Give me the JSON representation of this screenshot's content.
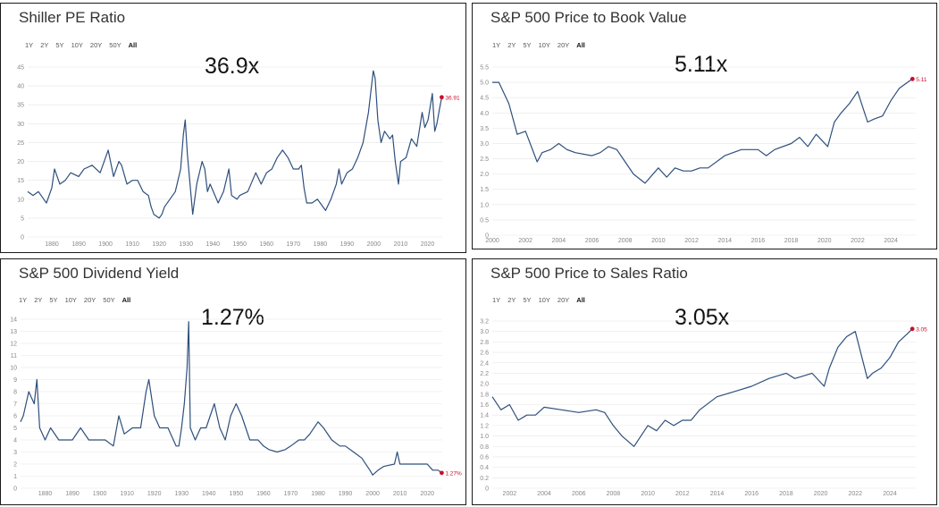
{
  "colors": {
    "line": "#2e4f7c",
    "marker": "#c8102e",
    "grid": "#e6e6e6",
    "tick": "#888888",
    "label": "#c8102e"
  },
  "panels": [
    {
      "title": "Shiller PE Ratio",
      "ranges": [
        "1Y",
        "2Y",
        "5Y",
        "10Y",
        "20Y",
        "50Y",
        "All"
      ],
      "active_range": "All",
      "headline": "36.9x"
    },
    {
      "title": "S&P 500 Price to Book Value",
      "ranges": [
        "1Y",
        "2Y",
        "5Y",
        "10Y",
        "20Y",
        "All"
      ],
      "active_range": "All",
      "headline": "5.11x"
    },
    {
      "title": "S&P 500 Dividend Yield",
      "ranges": [
        "1Y",
        "2Y",
        "5Y",
        "10Y",
        "20Y",
        "50Y",
        "All"
      ],
      "active_range": "All",
      "headline": "1.27%"
    },
    {
      "title": "S&P 500 Price to Sales Ratio",
      "ranges": [
        "1Y",
        "2Y",
        "5Y",
        "10Y",
        "20Y",
        "All"
      ],
      "active_range": "All",
      "headline": "3.05x"
    }
  ],
  "chart_data": [
    {
      "type": "line",
      "title": "Shiller PE Ratio",
      "xlabel": "",
      "ylabel": "",
      "xlim": [
        1871,
        2025.5
      ],
      "ylim": [
        0,
        45
      ],
      "y_ticks": [
        "0",
        "5",
        "10",
        "15",
        "20",
        "25",
        "30",
        "35",
        "40",
        "45"
      ],
      "x_ticks": [
        "1880",
        "1890",
        "1900",
        "1910",
        "1920",
        "1930",
        "1940",
        "1950",
        "1960",
        "1970",
        "1980",
        "1990",
        "2000",
        "2010",
        "2020"
      ],
      "grid": true,
      "last_value_label": "36.91",
      "series": [
        {
          "x": [
            1871,
            1873,
            1875,
            1877,
            1878,
            1880,
            1881,
            1883,
            1885,
            1887,
            1890,
            1892,
            1895,
            1898,
            1900,
            1901,
            1903,
            1905,
            1906,
            1908,
            1910,
            1912,
            1914,
            1916,
            1917,
            1918,
            1920,
            1921,
            1922,
            1924,
            1926,
            1928,
            1929,
            1929.7,
            1930.5,
            1931.5,
            1932.5,
            1934,
            1936,
            1937,
            1938,
            1939,
            1942,
            1944,
            1946,
            1947,
            1949,
            1950,
            1953,
            1956,
            1958,
            1960,
            1962,
            1964,
            1966,
            1968,
            1970,
            1972,
            1973,
            1974,
            1975,
            1977,
            1979,
            1980,
            1982,
            1984,
            1986,
            1987,
            1988,
            1990,
            1992,
            1994,
            1996,
            1998,
            1999.8,
            2000.5,
            2001.5,
            2002.7,
            2004,
            2006,
            2007,
            2008,
            2009.2,
            2010,
            2012,
            2014,
            2016,
            2018,
            2019,
            2020.2,
            2021.8,
            2022.7,
            2023.5,
            2024.5,
            2025.3
          ],
          "y": [
            12,
            11,
            12,
            10,
            9,
            13,
            18,
            14,
            15,
            17,
            16,
            18,
            19,
            17,
            21,
            23,
            16,
            20,
            19,
            14,
            15,
            15,
            12,
            11,
            8,
            6,
            5,
            6,
            8,
            10,
            12,
            18,
            27,
            31,
            22,
            14,
            6,
            14,
            20,
            18,
            12,
            14,
            9,
            12,
            18,
            11,
            10,
            11,
            12,
            17,
            14,
            17,
            18,
            21,
            23,
            21,
            18,
            18,
            19,
            13,
            9,
            9,
            10,
            9,
            7,
            10,
            14,
            18,
            14,
            17,
            18,
            21,
            25,
            33,
            44,
            42,
            31,
            25,
            28,
            26,
            27,
            20,
            14,
            20,
            21,
            26,
            24,
            33,
            29,
            31,
            38,
            28,
            30,
            34,
            37
          ]
        }
      ]
    },
    {
      "type": "line",
      "title": "S&P 500 Price to Book Value",
      "xlabel": "",
      "ylabel": "",
      "xlim": [
        2000,
        2025.5
      ],
      "ylim": [
        0,
        5.5
      ],
      "y_ticks": [
        "0",
        "0.5",
        "1.0",
        "1.5",
        "2.0",
        "2.5",
        "3.0",
        "3.5",
        "4.0",
        "4.5",
        "5.0",
        "5.5"
      ],
      "x_ticks": [
        "2000",
        "2002",
        "2004",
        "2006",
        "2008",
        "2010",
        "2012",
        "2014",
        "2016",
        "2018",
        "2020",
        "2022",
        "2024"
      ],
      "grid": true,
      "last_value_label": "5.11",
      "series": [
        {
          "x": [
            2000,
            2000.4,
            2001,
            2001.5,
            2002,
            2002.7,
            2003,
            2003.5,
            2004,
            2004.5,
            2005,
            2006,
            2006.5,
            2007,
            2007.5,
            2008,
            2008.5,
            2009.2,
            2010,
            2010.5,
            2011,
            2011.5,
            2012,
            2012.5,
            2013,
            2014,
            2014.5,
            2015,
            2016,
            2016.5,
            2017,
            2018,
            2018.5,
            2019,
            2019.5,
            2020.2,
            2020.6,
            2021,
            2021.5,
            2022,
            2022.6,
            2023,
            2023.5,
            2024,
            2024.5,
            2025,
            2025.3
          ],
          "y": [
            5.0,
            5.0,
            4.3,
            3.3,
            3.4,
            2.4,
            2.7,
            2.8,
            3.0,
            2.8,
            2.7,
            2.6,
            2.7,
            2.9,
            2.8,
            2.4,
            2.0,
            1.7,
            2.2,
            1.9,
            2.2,
            2.1,
            2.1,
            2.2,
            2.2,
            2.6,
            2.7,
            2.8,
            2.8,
            2.6,
            2.8,
            3.0,
            3.2,
            2.9,
            3.3,
            2.9,
            3.7,
            4.0,
            4.3,
            4.7,
            3.7,
            3.8,
            3.9,
            4.4,
            4.8,
            5.0,
            5.11
          ]
        }
      ]
    },
    {
      "type": "line",
      "title": "S&P 500 Dividend Yield",
      "xlabel": "",
      "ylabel": "",
      "xlim": [
        1871,
        2025.5
      ],
      "ylim": [
        0,
        14
      ],
      "y_ticks": [
        "0",
        "1",
        "2",
        "3",
        "4",
        "5",
        "6",
        "7",
        "8",
        "9",
        "10",
        "11",
        "12",
        "13",
        "14"
      ],
      "x_ticks": [
        "1880",
        "1890",
        "1900",
        "1910",
        "1920",
        "1930",
        "1940",
        "1950",
        "1960",
        "1970",
        "1980",
        "1990",
        "2000",
        "2010",
        "2020"
      ],
      "grid": true,
      "last_value_label": "1.27%",
      "series": [
        {
          "x": [
            1871,
            1872,
            1874,
            1876,
            1877,
            1878,
            1880,
            1882,
            1885,
            1888,
            1890,
            1893,
            1896,
            1899,
            1900,
            1902,
            1905,
            1907,
            1909,
            1912,
            1915,
            1917,
            1918,
            1920,
            1922,
            1925,
            1928,
            1929,
            1930,
            1931,
            1932,
            1932.6,
            1933.2,
            1935,
            1937,
            1939,
            1942,
            1944,
            1946,
            1948,
            1950,
            1952,
            1955,
            1958,
            1960,
            1962,
            1965,
            1968,
            1970,
            1973,
            1975,
            1977,
            1980,
            1982,
            1985,
            1988,
            1990,
            1993,
            1996,
            1999,
            2000,
            2002,
            2004,
            2006,
            2008,
            2009,
            2010,
            2012,
            2015,
            2018,
            2020,
            2022,
            2024,
            2025.3
          ],
          "y": [
            5.5,
            6,
            8,
            7,
            9,
            5,
            4,
            5,
            4,
            4,
            4,
            5,
            4,
            4,
            4,
            4,
            3.5,
            6,
            4.5,
            5,
            5,
            8,
            9,
            6,
            5,
            5,
            3.5,
            3.5,
            5,
            7,
            10,
            13.8,
            5,
            4,
            5,
            5,
            7,
            5,
            4,
            6,
            7,
            6,
            4,
            4,
            3.5,
            3.2,
            3,
            3.2,
            3.5,
            4,
            4,
            4.5,
            5.5,
            5,
            4,
            3.5,
            3.5,
            3,
            2.5,
            1.5,
            1.1,
            1.5,
            1.8,
            1.9,
            2,
            3,
            2,
            2,
            2,
            2,
            2,
            1.5,
            1.5,
            1.27
          ]
        }
      ]
    },
    {
      "type": "line",
      "title": "S&P 500 Price to Sales Ratio",
      "xlabel": "",
      "ylabel": "",
      "xlim": [
        2001,
        2025.5
      ],
      "ylim": [
        0,
        3.2
      ],
      "y_ticks": [
        "0",
        "0.2",
        "0.4",
        "0.6",
        "0.8",
        "1.0",
        "1.2",
        "1.4",
        "1.6",
        "1.8",
        "2.0",
        "2.2",
        "2.4",
        "2.6",
        "2.8",
        "3.0",
        "3.2"
      ],
      "x_ticks": [
        "2002",
        "2004",
        "2006",
        "2008",
        "2010",
        "2012",
        "2014",
        "2016",
        "2018",
        "2020",
        "2022",
        "2024"
      ],
      "grid": true,
      "last_value_label": "3.05",
      "series": [
        {
          "x": [
            2001,
            2001.5,
            2002,
            2002.5,
            2003,
            2003.5,
            2004,
            2005,
            2006,
            2007,
            2007.5,
            2008,
            2008.5,
            2009.2,
            2010,
            2010.5,
            2011,
            2011.5,
            2012,
            2012.5,
            2013,
            2014,
            2015,
            2016,
            2017,
            2018,
            2018.5,
            2019,
            2019.5,
            2020.2,
            2020.5,
            2021,
            2021.5,
            2022,
            2022.7,
            2023,
            2023.5,
            2024,
            2024.5,
            2025,
            2025.3
          ],
          "y": [
            1.75,
            1.5,
            1.6,
            1.3,
            1.4,
            1.4,
            1.55,
            1.5,
            1.45,
            1.5,
            1.45,
            1.2,
            1.0,
            0.8,
            1.2,
            1.1,
            1.3,
            1.2,
            1.3,
            1.3,
            1.5,
            1.75,
            1.85,
            1.95,
            2.1,
            2.2,
            2.1,
            2.15,
            2.2,
            1.95,
            2.3,
            2.7,
            2.9,
            3.0,
            2.1,
            2.2,
            2.3,
            2.5,
            2.8,
            2.95,
            3.05
          ]
        }
      ]
    }
  ]
}
